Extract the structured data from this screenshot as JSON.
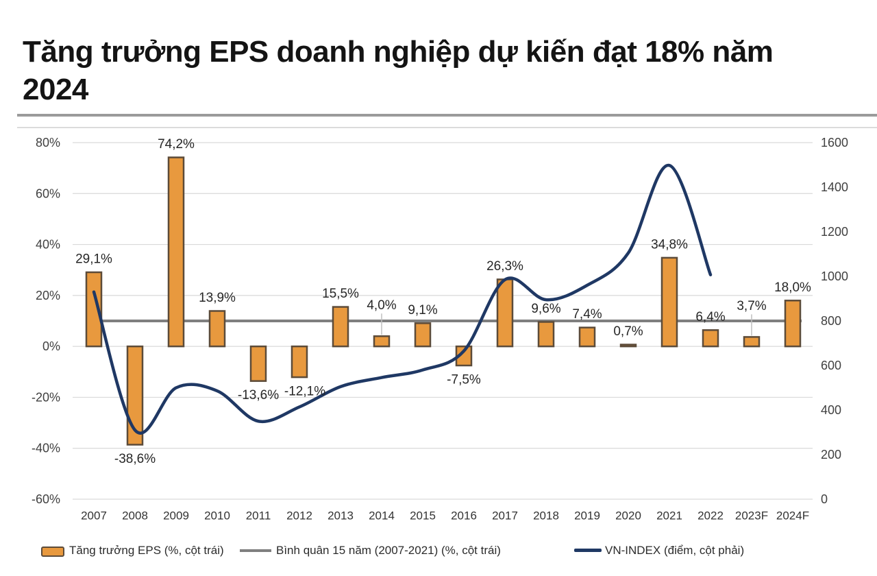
{
  "page": {
    "title_lines": [
      "Tăng trưởng EPS doanh nghiệp dự kiến đạt 18% năm",
      "2024"
    ]
  },
  "colors": {
    "bar_fill": "#E8993E",
    "bar_border": "#5C4B39",
    "avg_line": "#7F7F7F",
    "vn_line": "#1F3864",
    "gridline": "#D9D9D9",
    "leader_line": "#BFBFBF"
  },
  "chart_data": {
    "type": "bar",
    "combo": true,
    "title": "Tăng trưởng EPS doanh nghiệp dự kiến đạt 18% năm 2024",
    "grid": "horizontal",
    "legend_position": "bottom",
    "categories": [
      "2007",
      "2008",
      "2009",
      "2010",
      "2011",
      "2012",
      "2013",
      "2014",
      "2015",
      "2016",
      "2017",
      "2018",
      "2019",
      "2020",
      "2021",
      "2022",
      "2023F",
      "2024F"
    ],
    "left_axis": {
      "unit": "%",
      "min": -60,
      "max": 80,
      "tick_step": 20,
      "tick_labels": [
        "80%",
        "60%",
        "40%",
        "20%",
        "0%",
        "-20%",
        "-40%",
        "-60%"
      ],
      "tick_values": [
        80,
        60,
        40,
        20,
        0,
        -20,
        -40,
        -60
      ]
    },
    "right_axis": {
      "unit": "điểm",
      "min": 0,
      "max": 1600,
      "tick_step": 200,
      "tick_labels": [
        "1600",
        "1400",
        "1200",
        "1000",
        "800",
        "600",
        "400",
        "200",
        "0"
      ],
      "tick_values": [
        1600,
        1400,
        1200,
        1000,
        800,
        600,
        400,
        200,
        0
      ]
    },
    "series": [
      {
        "name": "Tăng trưởng EPS (%, cột trái)",
        "type": "bar",
        "axis": "left",
        "values": [
          29.1,
          -38.6,
          74.2,
          13.9,
          -13.6,
          -12.1,
          15.5,
          4.0,
          9.1,
          -7.5,
          26.3,
          9.6,
          7.4,
          0.7,
          34.8,
          6.4,
          3.7,
          18.0
        ],
        "labels": [
          "29,1%",
          "-38,6%",
          "74,2%",
          "13,9%",
          "-13,6%",
          "-12,1%",
          "15,5%",
          "4,0%",
          "9,1%",
          "-7,5%",
          "26,3%",
          "9,6%",
          "7,4%",
          "0,7%",
          "34,8%",
          "6,4%",
          "3,7%",
          "18,0%"
        ],
        "raised_label_indices": [
          7,
          16
        ],
        "label_x_offsets": {
          "5": 8
        }
      },
      {
        "name": "Bình quân 15 năm (2007-2021) (%, cột trái)",
        "type": "line-constant",
        "axis": "left",
        "value": 10
      },
      {
        "name": "VN-INDEX (điểm, cột phải)",
        "type": "line",
        "axis": "right",
        "covers_categories": [
          "2007",
          "2008",
          "2009",
          "2010",
          "2011",
          "2012",
          "2013",
          "2014",
          "2015",
          "2016",
          "2017",
          "2018",
          "2019",
          "2020",
          "2021",
          "2022"
        ],
        "values": [
          930,
          310,
          500,
          486,
          350,
          414,
          505,
          546,
          580,
          665,
          985,
          895,
          960,
          1105,
          1498,
          1007
        ]
      }
    ],
    "legend": [
      {
        "label": "Tăng trưởng EPS (%, cột trái)",
        "swatch": "bar"
      },
      {
        "label": "Bình quân 15 năm (2007-2021) (%, cột trái)",
        "swatch": "line-gray"
      },
      {
        "label": "VN-INDEX (điểm, cột phải)",
        "swatch": "line-navy"
      }
    ]
  }
}
